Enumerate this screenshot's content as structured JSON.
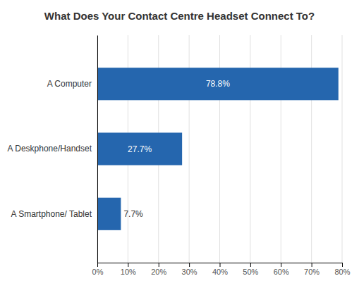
{
  "chart_data": {
    "type": "bar",
    "orientation": "horizontal",
    "title": "What Does Your Contact Centre Headset Connect To?",
    "categories": [
      "A Smartphone/ Tablet",
      "A Deskphone/Handset",
      "A Computer"
    ],
    "values": [
      7.7,
      27.7,
      78.8
    ],
    "value_labels": [
      "7.7%",
      "27.7%",
      "78.8%"
    ],
    "data_labels": true,
    "color": "#2566AE",
    "xlim": [
      0,
      80
    ],
    "xticks": [
      {
        "value": 0,
        "label": "0%"
      },
      {
        "value": 10,
        "label": "10%"
      },
      {
        "value": 20,
        "label": "20%"
      },
      {
        "value": 30,
        "label": "30%"
      },
      {
        "value": 40,
        "label": "40%"
      },
      {
        "value": 50,
        "label": "50%"
      },
      {
        "value": 60,
        "label": "60%"
      },
      {
        "value": 70,
        "label": "70%"
      },
      {
        "value": 80,
        "label": "80%"
      }
    ],
    "grid": true
  }
}
